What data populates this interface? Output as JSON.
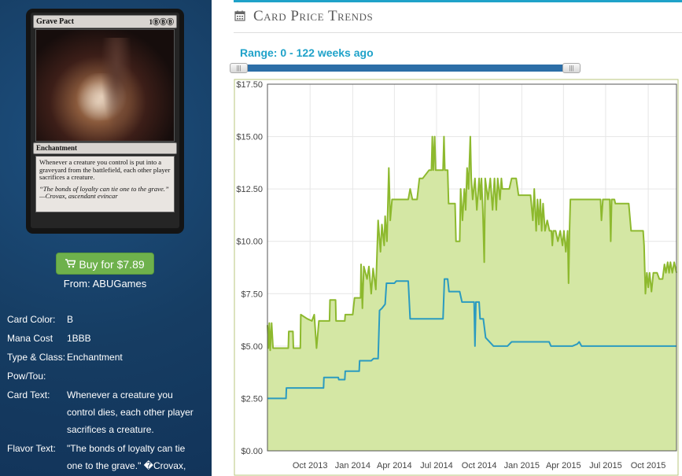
{
  "card": {
    "name": "Grave Pact",
    "mana_symbols": "1ⒷⒷⒷ",
    "type_line": "Enchantment",
    "rules_text": "Whenever a creature you control is put into a graveyard from the battlefield, each other player sacrifices a creature.",
    "flavor_line1": "“The bonds of loyalty can tie one to the grave.”",
    "flavor_line2": "—Crovax, ascendant evincar"
  },
  "buy": {
    "label": "Buy for $7.89",
    "from": "From: ABUGames"
  },
  "info": [
    {
      "label": "Card Color:",
      "value": "B"
    },
    {
      "label": "Mana Cost",
      "value": "1BBB"
    },
    {
      "label": "Type & Class:",
      "value": "Enchantment"
    },
    {
      "label": "Pow/Tou:",
      "value": ""
    },
    {
      "label": "Card Text:",
      "value": "Whenever a creature you control dies, each other player sacrifices a creature."
    },
    {
      "label": "Flavor Text:",
      "value": "\"The bonds of loyalty can tie one to the grave.\" �Crovax,"
    }
  ],
  "header": {
    "title": "Card Price Trends",
    "icon": "calendar-icon",
    "accent": "#1fa2c9"
  },
  "range": {
    "label": "Range: 0 - 122 weeks ago",
    "from_weeks": 0,
    "to_weeks": 122
  },
  "chart_data": {
    "type": "area",
    "ylim": [
      0,
      17.5
    ],
    "yticks": [
      "$0.00",
      "$2.50",
      "$5.00",
      "$7.50",
      "$10.00",
      "$12.50",
      "$15.00",
      "$17.50"
    ],
    "ytick_values": [
      0,
      2.5,
      5,
      7.5,
      10,
      12.5,
      15,
      17.5
    ],
    "xlim": [
      "2013-07-01",
      "2015-12-01"
    ],
    "xticks": [
      "Oct 2013",
      "Jan 2014",
      "Apr 2014",
      "Jul 2014",
      "Oct 2014",
      "Jan 2015",
      "Apr 2015",
      "Jul 2015",
      "Oct 2015"
    ],
    "xtick_dates": [
      "2013-10-01",
      "2014-01-01",
      "2014-04-01",
      "2014-07-01",
      "2014-10-01",
      "2015-01-01",
      "2015-04-01",
      "2015-07-01",
      "2015-10-01"
    ],
    "grid": true,
    "series": [
      {
        "color": "#8db92e",
        "fill": "#d4e7a4",
        "points": [
          [
            "2013-07-01",
            6.0
          ],
          [
            "2013-07-03",
            4.9
          ],
          [
            "2013-07-05",
            6.1
          ],
          [
            "2013-07-07",
            4.8
          ],
          [
            "2013-07-10",
            6.1
          ],
          [
            "2013-07-13",
            4.9
          ],
          [
            "2013-07-20",
            4.9
          ],
          [
            "2013-08-01",
            4.9
          ],
          [
            "2013-08-15",
            4.9
          ],
          [
            "2013-08-16",
            5.7
          ],
          [
            "2013-08-25",
            5.7
          ],
          [
            "2013-08-26",
            4.9
          ],
          [
            "2013-09-10",
            4.9
          ],
          [
            "2013-09-11",
            6.5
          ],
          [
            "2013-09-25",
            6.3
          ],
          [
            "2013-10-05",
            6.2
          ],
          [
            "2013-10-10",
            6.5
          ],
          [
            "2013-10-15",
            4.9
          ],
          [
            "2013-10-20",
            6.2
          ],
          [
            "2013-11-01",
            6.2
          ],
          [
            "2013-11-12",
            6.2
          ],
          [
            "2013-11-13",
            7.2
          ],
          [
            "2013-11-25",
            7.2
          ],
          [
            "2013-11-26",
            6.2
          ],
          [
            "2013-12-15",
            6.2
          ],
          [
            "2013-12-16",
            6.5
          ],
          [
            "2014-01-01",
            6.5
          ],
          [
            "2014-01-05",
            7.3
          ],
          [
            "2014-01-18",
            7.3
          ],
          [
            "2014-01-19",
            8.9
          ],
          [
            "2014-01-22",
            6.8
          ],
          [
            "2014-01-25",
            8.8
          ],
          [
            "2014-02-01",
            8.2
          ],
          [
            "2014-02-05",
            8.8
          ],
          [
            "2014-02-10",
            7.5
          ],
          [
            "2014-02-14",
            8.7
          ],
          [
            "2014-02-20",
            7.7
          ],
          [
            "2014-02-25",
            11.0
          ],
          [
            "2014-03-02",
            9.5
          ],
          [
            "2014-03-05",
            10.8
          ],
          [
            "2014-03-10",
            9.8
          ],
          [
            "2014-03-12",
            11.2
          ],
          [
            "2014-03-16",
            10.0
          ],
          [
            "2014-03-20",
            13.5
          ],
          [
            "2014-03-23",
            11.0
          ],
          [
            "2014-03-27",
            12.0
          ],
          [
            "2014-04-15",
            12.0
          ],
          [
            "2014-04-20",
            12.0
          ],
          [
            "2014-05-01",
            12.0
          ],
          [
            "2014-05-05",
            12.5
          ],
          [
            "2014-05-10",
            12.0
          ],
          [
            "2014-05-20",
            12.0
          ],
          [
            "2014-05-25",
            13.0
          ],
          [
            "2014-06-01",
            13.0
          ],
          [
            "2014-06-15",
            13.4
          ],
          [
            "2014-06-20",
            13.4
          ],
          [
            "2014-06-22",
            15.0
          ],
          [
            "2014-06-24",
            13.4
          ],
          [
            "2014-06-27",
            15.0
          ],
          [
            "2014-06-29",
            13.4
          ],
          [
            "2014-07-15",
            13.4
          ],
          [
            "2014-07-17",
            15.0
          ],
          [
            "2014-07-19",
            13.4
          ],
          [
            "2014-07-25",
            13.4
          ],
          [
            "2014-07-27",
            11.8
          ],
          [
            "2014-08-01",
            11.8
          ],
          [
            "2014-08-10",
            11.8
          ],
          [
            "2014-08-12",
            10.0
          ],
          [
            "2014-08-20",
            10.0
          ],
          [
            "2014-08-22",
            12.5
          ],
          [
            "2014-08-26",
            11.0
          ],
          [
            "2014-08-30",
            12.5
          ],
          [
            "2014-09-02",
            11.5
          ],
          [
            "2014-09-05",
            13.5
          ],
          [
            "2014-09-08",
            12.5
          ],
          [
            "2014-09-12",
            15.0
          ],
          [
            "2014-09-14",
            13.0
          ],
          [
            "2014-09-17",
            12.0
          ],
          [
            "2014-09-22",
            13.0
          ],
          [
            "2014-09-26",
            11.5
          ],
          [
            "2014-10-01",
            13.0
          ],
          [
            "2014-10-04",
            12.0
          ],
          [
            "2014-10-06",
            13.0
          ],
          [
            "2014-10-09",
            11.5
          ],
          [
            "2014-10-12",
            9.0
          ],
          [
            "2014-10-14",
            13.0
          ],
          [
            "2014-10-20",
            12.0
          ],
          [
            "2014-10-25",
            13.0
          ],
          [
            "2014-10-30",
            11.5
          ],
          [
            "2014-11-03",
            13.0
          ],
          [
            "2014-11-07",
            11.5
          ],
          [
            "2014-11-10",
            13.0
          ],
          [
            "2014-11-15",
            12.0
          ],
          [
            "2014-11-18",
            13.0
          ],
          [
            "2014-11-20",
            12.5
          ],
          [
            "2014-12-05",
            12.5
          ],
          [
            "2014-12-10",
            13.0
          ],
          [
            "2014-12-15",
            13.0
          ],
          [
            "2014-12-20",
            13.0
          ],
          [
            "2014-12-25",
            12.2
          ],
          [
            "2015-01-05",
            12.2
          ],
          [
            "2015-01-20",
            12.2
          ],
          [
            "2015-01-25",
            11.0
          ],
          [
            "2015-01-28",
            12.5
          ],
          [
            "2015-02-01",
            10.5
          ],
          [
            "2015-02-04",
            12.0
          ],
          [
            "2015-02-07",
            10.8
          ],
          [
            "2015-02-10",
            12.0
          ],
          [
            "2015-02-13",
            10.5
          ],
          [
            "2015-02-16",
            11.8
          ],
          [
            "2015-02-20",
            10.5
          ],
          [
            "2015-02-25",
            11.0
          ],
          [
            "2015-03-02",
            10.5
          ],
          [
            "2015-03-06",
            10.5
          ],
          [
            "2015-03-08",
            9.8
          ],
          [
            "2015-03-10",
            10.5
          ],
          [
            "2015-03-15",
            10.5
          ],
          [
            "2015-03-20",
            10.0
          ],
          [
            "2015-03-25",
            10.5
          ],
          [
            "2015-03-30",
            9.8
          ],
          [
            "2015-04-02",
            10.5
          ],
          [
            "2015-04-06",
            9.5
          ],
          [
            "2015-04-10",
            10.5
          ],
          [
            "2015-04-12",
            8.0
          ],
          [
            "2015-04-14",
            10.5
          ],
          [
            "2015-04-16",
            12.0
          ],
          [
            "2015-05-01",
            12.0
          ],
          [
            "2015-05-15",
            12.0
          ],
          [
            "2015-06-01",
            12.0
          ],
          [
            "2015-06-20",
            12.0
          ],
          [
            "2015-06-22",
            11.0
          ],
          [
            "2015-06-25",
            12.0
          ],
          [
            "2015-07-10",
            12.0
          ],
          [
            "2015-07-12",
            10.0
          ],
          [
            "2015-07-14",
            12.0
          ],
          [
            "2015-07-20",
            12.0
          ],
          [
            "2015-07-22",
            11.8
          ],
          [
            "2015-08-01",
            11.8
          ],
          [
            "2015-08-20",
            11.8
          ],
          [
            "2015-08-25",
            10.5
          ],
          [
            "2015-09-01",
            10.5
          ],
          [
            "2015-09-20",
            10.5
          ],
          [
            "2015-09-22",
            9.8
          ],
          [
            "2015-09-25",
            7.5
          ],
          [
            "2015-09-28",
            8.5
          ],
          [
            "2015-10-01",
            7.8
          ],
          [
            "2015-10-04",
            8.5
          ],
          [
            "2015-10-08",
            7.6
          ],
          [
            "2015-10-12",
            8.5
          ],
          [
            "2015-10-20",
            8.5
          ],
          [
            "2015-10-25",
            8.2
          ],
          [
            "2015-11-01",
            8.2
          ],
          [
            "2015-11-05",
            8.9
          ],
          [
            "2015-11-08",
            8.5
          ],
          [
            "2015-11-12",
            9.0
          ],
          [
            "2015-11-15",
            8.5
          ],
          [
            "2015-11-18",
            9.0
          ],
          [
            "2015-11-22",
            8.5
          ],
          [
            "2015-11-26",
            9.0
          ],
          [
            "2015-12-01",
            8.5
          ]
        ]
      },
      {
        "color": "#2b9bc0",
        "fill": "none",
        "points": [
          [
            "2013-07-01",
            2.5
          ],
          [
            "2013-08-01",
            2.5
          ],
          [
            "2013-08-10",
            2.5
          ],
          [
            "2013-08-11",
            3.0
          ],
          [
            "2013-09-01",
            3.0
          ],
          [
            "2013-10-01",
            3.0
          ],
          [
            "2013-10-30",
            3.0
          ],
          [
            "2013-10-31",
            3.5
          ],
          [
            "2013-12-01",
            3.5
          ],
          [
            "2013-12-02",
            3.4
          ],
          [
            "2013-12-15",
            3.4
          ],
          [
            "2013-12-16",
            3.8
          ],
          [
            "2014-01-15",
            3.8
          ],
          [
            "2014-01-16",
            4.3
          ],
          [
            "2014-02-10",
            4.3
          ],
          [
            "2014-02-15",
            4.4
          ],
          [
            "2014-02-25",
            4.4
          ],
          [
            "2014-02-28",
            6.7
          ],
          [
            "2014-03-05",
            6.8
          ],
          [
            "2014-03-12",
            7.0
          ],
          [
            "2014-03-15",
            8.0
          ],
          [
            "2014-04-01",
            8.0
          ],
          [
            "2014-04-05",
            8.1
          ],
          [
            "2014-05-01",
            8.1
          ],
          [
            "2014-05-05",
            6.3
          ],
          [
            "2014-07-15",
            6.3
          ],
          [
            "2014-07-18",
            8.2
          ],
          [
            "2014-07-25",
            8.2
          ],
          [
            "2014-07-28",
            7.6
          ],
          [
            "2014-08-20",
            7.6
          ],
          [
            "2014-08-25",
            7.1
          ],
          [
            "2014-09-20",
            7.1
          ],
          [
            "2014-09-22",
            5.0
          ],
          [
            "2014-09-24",
            7.1
          ],
          [
            "2014-10-01",
            7.1
          ],
          [
            "2014-10-03",
            6.3
          ],
          [
            "2014-10-10",
            6.3
          ],
          [
            "2014-10-15",
            5.4
          ],
          [
            "2014-11-01",
            5.0
          ],
          [
            "2014-12-01",
            5.0
          ],
          [
            "2014-12-10",
            5.2
          ],
          [
            "2015-03-01",
            5.2
          ],
          [
            "2015-03-05",
            5.0
          ],
          [
            "2015-04-20",
            5.0
          ],
          [
            "2015-05-01",
            5.1
          ],
          [
            "2015-05-05",
            5.2
          ],
          [
            "2015-05-10",
            5.0
          ],
          [
            "2015-06-01",
            5.0
          ],
          [
            "2015-09-01",
            5.0
          ],
          [
            "2015-12-01",
            5.0
          ]
        ]
      }
    ]
  }
}
